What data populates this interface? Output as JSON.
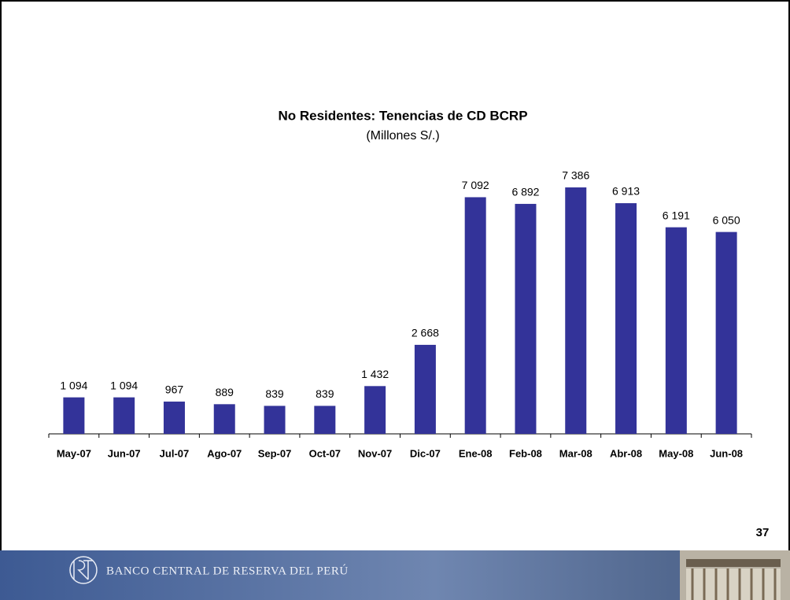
{
  "chart_data": {
    "type": "bar",
    "title": "No Residentes: Tenencias de CD BCRP",
    "subtitle": "(Millones S/.)",
    "categories": [
      "May-07",
      "Jun-07",
      "Jul-07",
      "Ago-07",
      "Sep-07",
      "Oct-07",
      "Nov-07",
      "Dic-07",
      "Ene-08",
      "Feb-08",
      "Mar-08",
      "Abr-08",
      "May-08",
      "Jun-08"
    ],
    "values": [
      1094,
      1094,
      967,
      889,
      839,
      839,
      1432,
      2668,
      7092,
      6892,
      7386,
      6913,
      6191,
      6050
    ],
    "value_labels": [
      "1 094",
      "1 094",
      "967",
      "889",
      "839",
      "839",
      "1 432",
      "2 668",
      "7 092",
      "6 892",
      "7 386",
      "6 913",
      "6 191",
      "6 050"
    ],
    "color": "#333399"
  },
  "page_number": "37",
  "footer": "BANCO CENTRAL DE RESERVA DEL PERÚ"
}
